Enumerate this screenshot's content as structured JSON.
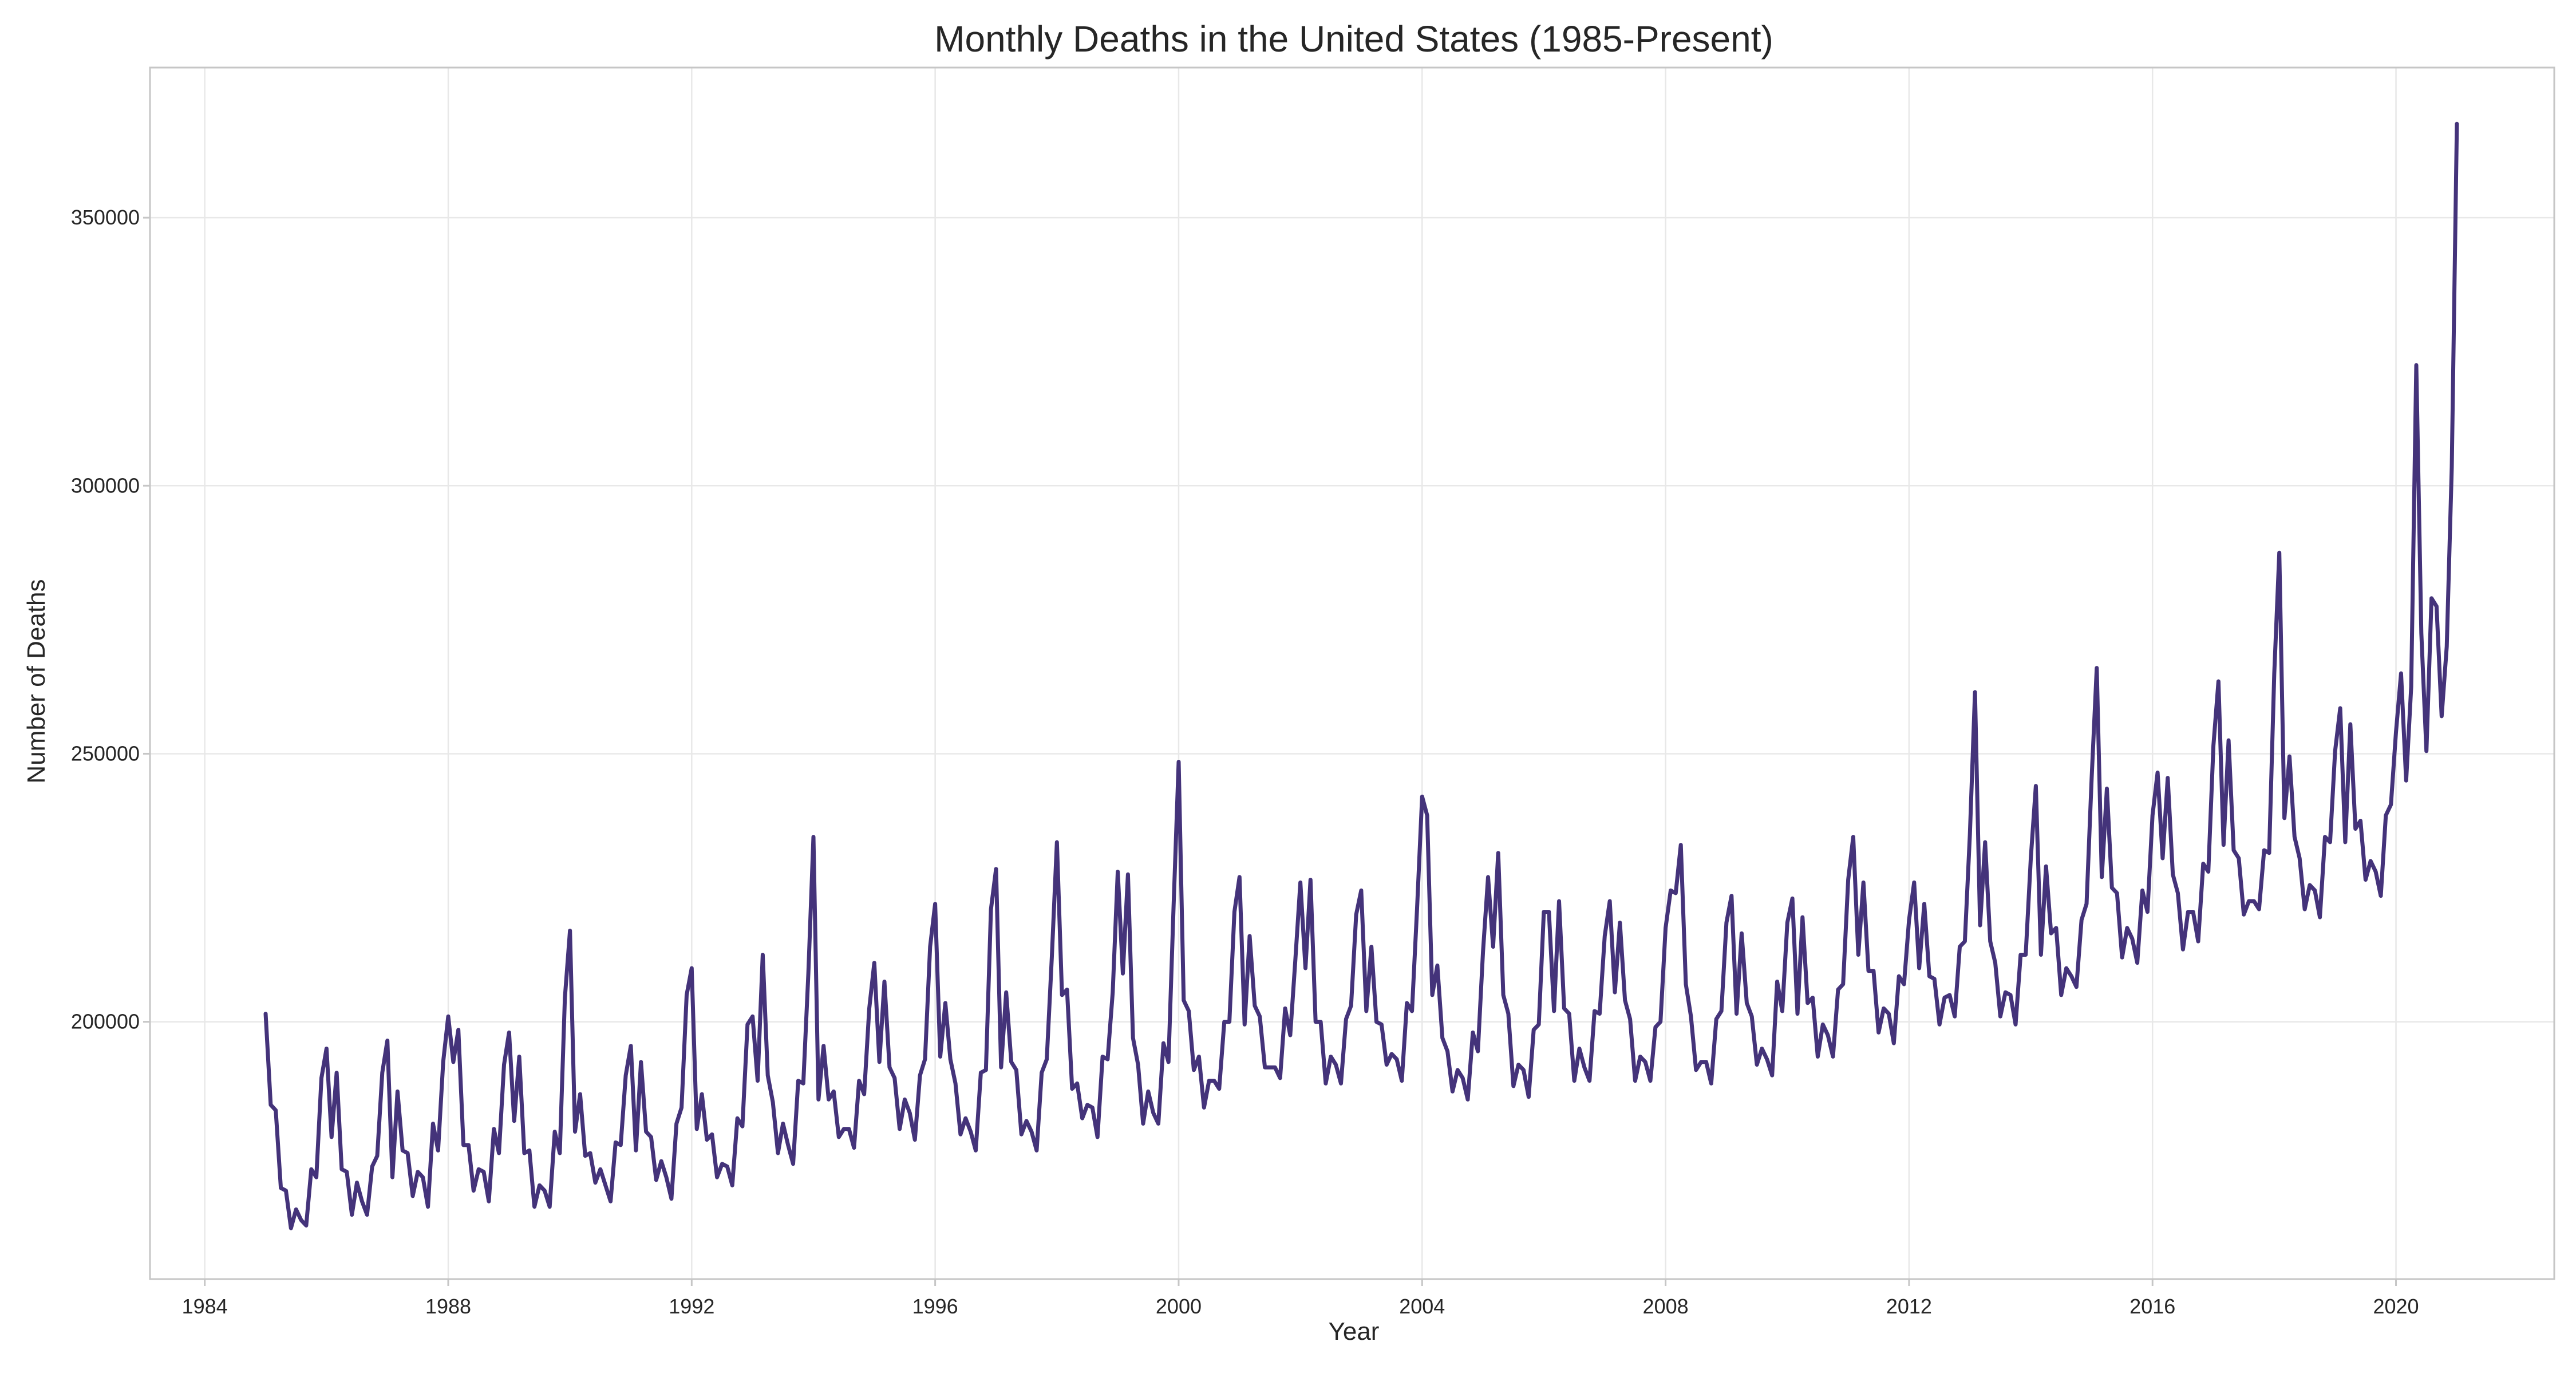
{
  "chart_data": {
    "type": "line",
    "title": "Monthly Deaths in the United States (1985-Present)",
    "xlabel": "Year",
    "ylabel": "Number of Deaths",
    "xlim": [
      1983.1,
      2022.6
    ],
    "ylim": [
      152000,
      378000
    ],
    "xticks": [
      1984,
      1988,
      1992,
      1996,
      2000,
      2004,
      2008,
      2012,
      2016,
      2020
    ],
    "yticks": [
      200000,
      250000,
      300000,
      350000
    ],
    "grid": true,
    "legend": "none",
    "colors": {
      "line": "#44337a",
      "grid": "#e8e8e8",
      "frame": "#c6c6c6",
      "text": "#262626"
    },
    "series": [
      {
        "start": "1985-01",
        "frequency": "monthly",
        "values": [
          201500,
          184500,
          183500,
          169000,
          168500,
          161500,
          165000,
          163000,
          162000,
          172500,
          171000,
          189500,
          195000,
          178500,
          190500,
          172500,
          172000,
          164000,
          170000,
          166500,
          164000,
          173000,
          175000,
          190500,
          196500,
          171000,
          187000,
          176000,
          175500,
          167500,
          172000,
          171000,
          165500,
          181000,
          176000,
          192500,
          201000,
          192500,
          198500,
          177000,
          177000,
          168500,
          172500,
          172000,
          166500,
          180000,
          175500,
          192000,
          198000,
          181500,
          193500,
          175500,
          176000,
          165500,
          169500,
          168500,
          165500,
          179500,
          175500,
          204500,
          217000,
          179500,
          186500,
          175000,
          175500,
          170000,
          172500,
          169500,
          166500,
          177500,
          177000,
          190000,
          195500,
          176000,
          192500,
          179500,
          178500,
          170500,
          174000,
          171000,
          167000,
          181000,
          184000,
          205000,
          210000,
          180000,
          186500,
          178000,
          179000,
          171000,
          173500,
          173000,
          169500,
          182000,
          180500,
          199500,
          201000,
          189000,
          212500,
          190000,
          185000,
          175500,
          181000,
          177000,
          173500,
          189000,
          188500,
          209000,
          234500,
          185500,
          195500,
          185500,
          187000,
          178500,
          180000,
          180000,
          176500,
          189000,
          186500,
          202500,
          211000,
          192500,
          207500,
          191500,
          189500,
          180000,
          185500,
          183000,
          178000,
          190000,
          193000,
          214000,
          222000,
          193500,
          203500,
          193000,
          188500,
          179000,
          182000,
          179500,
          176000,
          190500,
          191000,
          221000,
          228500,
          191500,
          205500,
          192500,
          191000,
          179000,
          181500,
          179500,
          176000,
          190500,
          193000,
          212000,
          233500,
          205000,
          206000,
          187500,
          188500,
          182000,
          184500,
          184000,
          178500,
          193500,
          193000,
          205500,
          228000,
          209000,
          227500,
          197000,
          192000,
          181000,
          187000,
          183000,
          181000,
          196000,
          192500,
          221500,
          248500,
          204000,
          202000,
          191000,
          193500,
          184000,
          189000,
          189000,
          187500,
          200000,
          200000,
          220500,
          227000,
          199500,
          216000,
          203000,
          201000,
          191500,
          191500,
          191500,
          189500,
          202500,
          197500,
          211500,
          226000,
          210000,
          226500,
          200000,
          200000,
          188500,
          193500,
          192000,
          188500,
          200500,
          203000,
          220000,
          224500,
          202000,
          214000,
          200000,
          199500,
          192000,
          194000,
          193000,
          189000,
          203500,
          202000,
          221000,
          242000,
          238500,
          205000,
          210500,
          197000,
          194500,
          187000,
          191000,
          189500,
          185500,
          198000,
          194500,
          213000,
          227000,
          214000,
          231500,
          205000,
          201500,
          188000,
          192000,
          191000,
          186000,
          198500,
          199500,
          220500,
          220500,
          202000,
          222500,
          202500,
          201500,
          189000,
          195000,
          191500,
          189000,
          202000,
          201500,
          216000,
          222500,
          205500,
          218500,
          204000,
          200500,
          189000,
          193500,
          192500,
          189000,
          199000,
          200000,
          217500,
          224500,
          224000,
          233000,
          207000,
          201000,
          191000,
          192500,
          192500,
          188500,
          200500,
          202000,
          218500,
          223500,
          201500,
          216500,
          203500,
          201000,
          192000,
          195000,
          193000,
          190000,
          207500,
          202000,
          218500,
          223000,
          201500,
          219500,
          203500,
          204500,
          193500,
          199500,
          197500,
          193500,
          206000,
          207000,
          226500,
          234500,
          212500,
          226000,
          209500,
          209500,
          198000,
          202500,
          201500,
          196000,
          208500,
          207000,
          219000,
          226000,
          210000,
          222000,
          208500,
          208000,
          199500,
          204500,
          205000,
          201000,
          214000,
          215000,
          235000,
          261500,
          218000,
          233500,
          215000,
          211000,
          201000,
          205500,
          205000,
          199500,
          212500,
          212500,
          230500,
          244000,
          212500,
          229000,
          216500,
          217500,
          205000,
          210000,
          208500,
          206500,
          219000,
          222000,
          245500,
          266000,
          227000,
          243500,
          225000,
          224000,
          212000,
          217500,
          215500,
          211000,
          224500,
          220500,
          238500,
          246500,
          230500,
          245500,
          227500,
          224000,
          213500,
          220500,
          220500,
          215000,
          229500,
          228000,
          251500,
          263500,
          233000,
          252500,
          232000,
          230500,
          220000,
          222500,
          222500,
          221000,
          232000,
          231500,
          265000,
          287500,
          238000,
          249500,
          234500,
          230500,
          221000,
          225500,
          224500,
          219500,
          234500,
          233500,
          250500,
          258500,
          233500,
          255500,
          236000,
          237500,
          226500,
          230000,
          228000,
          223500,
          238500,
          240500,
          254000,
          265000,
          245000,
          262500,
          322500,
          272500,
          250500,
          279000,
          277500,
          257000,
          270000,
          303500,
          367500
        ]
      }
    ]
  }
}
